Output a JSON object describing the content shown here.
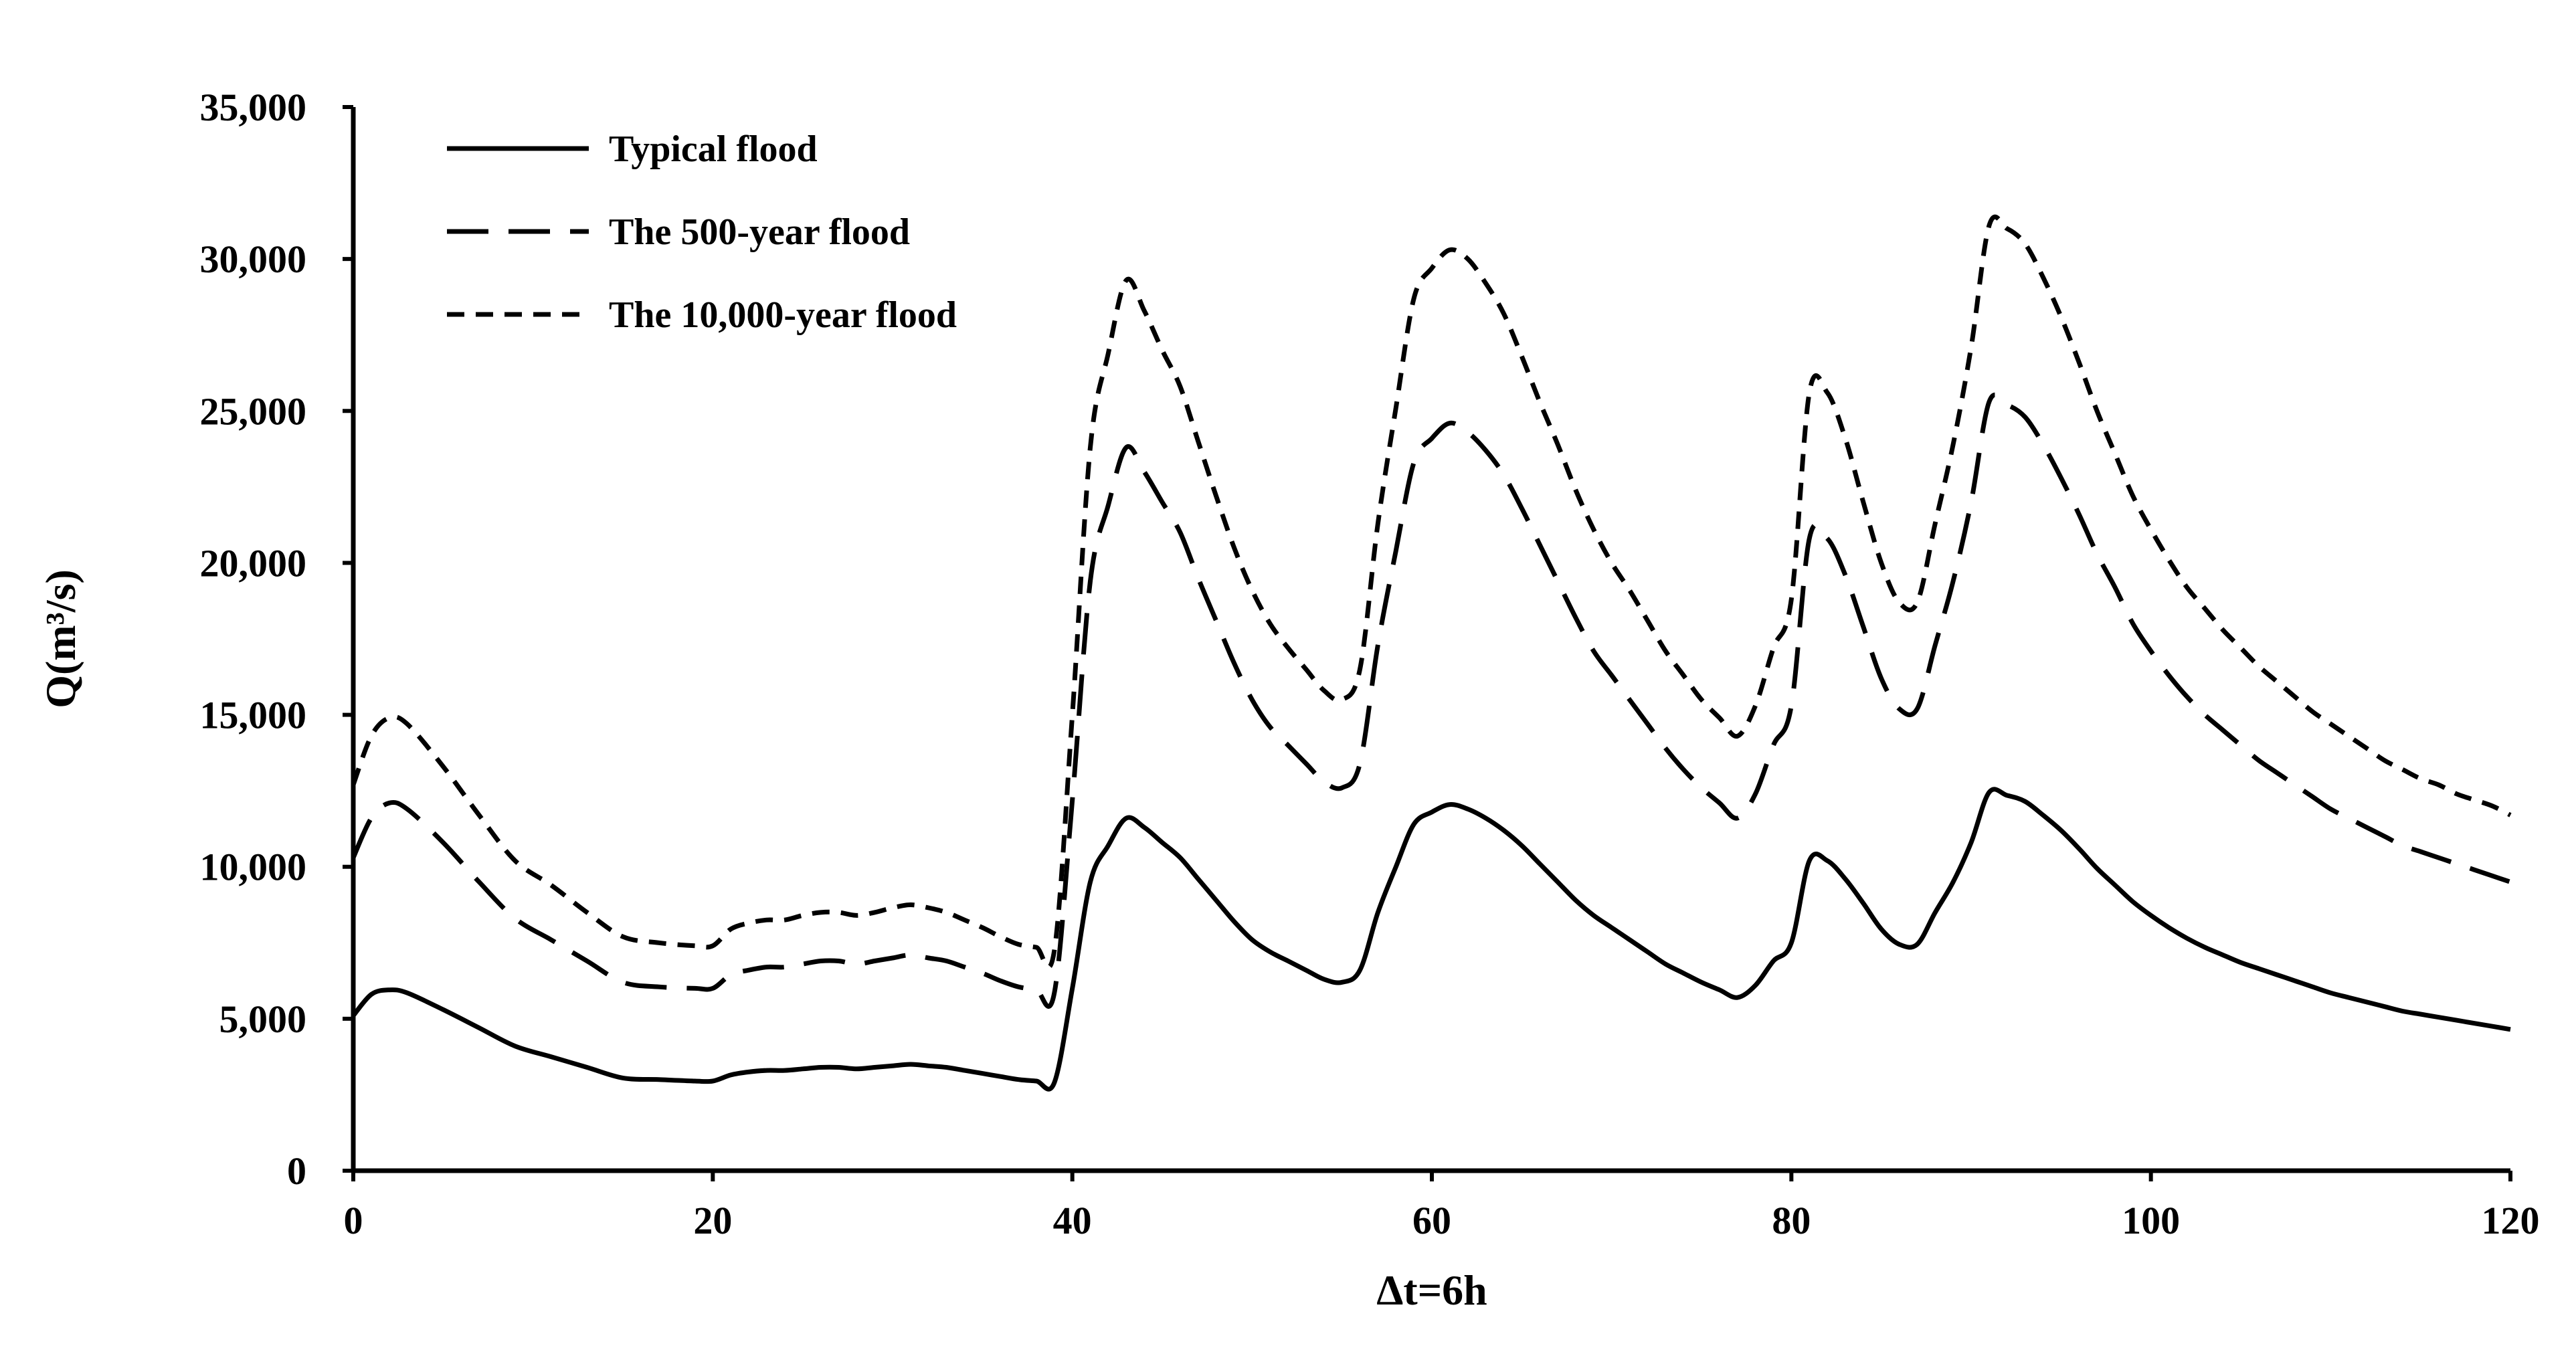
{
  "chart_data": {
    "type": "line",
    "title": "",
    "xlabel": "Δt=6h",
    "ylabel": "Q(m³/s)",
    "xlim": [
      0,
      120
    ],
    "ylim": [
      0,
      35000
    ],
    "x_ticks": [
      0,
      20,
      40,
      60,
      80,
      100,
      120
    ],
    "x_tick_labels": [
      "0",
      "20",
      "40",
      "60",
      "80",
      "100",
      "120"
    ],
    "y_ticks": [
      0,
      5000,
      10000,
      15000,
      20000,
      25000,
      30000,
      35000
    ],
    "y_tick_labels": [
      "0",
      "5,000",
      "10,000",
      "15,000",
      "20,000",
      "25,000",
      "30,000",
      "35,000"
    ],
    "grid": false,
    "legend_position": "top-left",
    "series": [
      {
        "name": "Typical flood",
        "style": "solid",
        "color": "#000000",
        "x": [
          0,
          1,
          2,
          3,
          5,
          7,
          9,
          11,
          13,
          15,
          17,
          19,
          20,
          21,
          22,
          23,
          24,
          25,
          26,
          27,
          28,
          29,
          30,
          31,
          32,
          33,
          34,
          35,
          36,
          37,
          38,
          39,
          40,
          41,
          42,
          43,
          44,
          45,
          46,
          47,
          48,
          49,
          50,
          51,
          52,
          53,
          54,
          55,
          56,
          57,
          58,
          59,
          60,
          61,
          62,
          63,
          64,
          65,
          66,
          67,
          68,
          69,
          70,
          71,
          72,
          73,
          74,
          75,
          76,
          77,
          78,
          79,
          80,
          81,
          82,
          83,
          84,
          85,
          86,
          87,
          88,
          89,
          90,
          91,
          92,
          93,
          94,
          95,
          96,
          97,
          98,
          99,
          100,
          101,
          102,
          103,
          104,
          105,
          106,
          107,
          108,
          109,
          110,
          111,
          112,
          113,
          114,
          115,
          116,
          117,
          118,
          119,
          120
        ],
        "values": [
          5100,
          5800,
          5950,
          5850,
          5300,
          4700,
          4100,
          3750,
          3400,
          3050,
          3000,
          2950,
          2950,
          3150,
          3250,
          3300,
          3300,
          3350,
          3400,
          3400,
          3350,
          3400,
          3450,
          3500,
          3450,
          3400,
          3300,
          3200,
          3100,
          3000,
          2950,
          2900,
          6000,
          9500,
          10700,
          11600,
          11300,
          10800,
          10300,
          9600,
          8900,
          8200,
          7600,
          7200,
          6900,
          6600,
          6300,
          6200,
          6600,
          8500,
          10000,
          11400,
          11800,
          12050,
          11900,
          11600,
          11200,
          10700,
          10100,
          9500,
          8900,
          8400,
          8000,
          7600,
          7200,
          6800,
          6500,
          6200,
          5950,
          5700,
          6100,
          6900,
          7500,
          10200,
          10200,
          9600,
          8800,
          7950,
          7450,
          7450,
          8500,
          9500,
          10800,
          12450,
          12350,
          12150,
          11700,
          11200,
          10600,
          9950,
          9400,
          8850,
          8400,
          8000,
          7650,
          7350,
          7100,
          6850,
          6650,
          6450,
          6250,
          6050,
          5850,
          5700,
          5550,
          5400,
          5250,
          5150,
          5050,
          4950,
          4850,
          4750,
          4650
        ]
      },
      {
        "name": "The 500-year flood",
        "style": "long-dash",
        "color": "#000000",
        "x": [
          0,
          1,
          2,
          3,
          5,
          7,
          9,
          11,
          13,
          15,
          17,
          19,
          20,
          21,
          22,
          23,
          24,
          25,
          26,
          27,
          28,
          29,
          30,
          31,
          32,
          33,
          34,
          35,
          36,
          37,
          38,
          39,
          40,
          41,
          42,
          43,
          44,
          45,
          46,
          47,
          48,
          49,
          50,
          51,
          52,
          53,
          54,
          55,
          56,
          57,
          58,
          59,
          60,
          61,
          62,
          63,
          64,
          65,
          66,
          67,
          68,
          69,
          70,
          71,
          72,
          73,
          74,
          75,
          76,
          77,
          78,
          79,
          80,
          81,
          82,
          83,
          84,
          85,
          86,
          87,
          88,
          89,
          90,
          91,
          92,
          93,
          94,
          95,
          96,
          97,
          98,
          99,
          100,
          101,
          102,
          103,
          104,
          105,
          106,
          107,
          108,
          109,
          110,
          111,
          112,
          113,
          114,
          115,
          116,
          117,
          118,
          119,
          120
        ],
        "values": [
          10300,
          11600,
          12100,
          11900,
          10800,
          9500,
          8300,
          7600,
          6900,
          6200,
          6050,
          6000,
          6000,
          6450,
          6600,
          6700,
          6700,
          6800,
          6900,
          6900,
          6800,
          6900,
          7000,
          7100,
          7000,
          6900,
          6700,
          6500,
          6250,
          6050,
          5950,
          5850,
          12200,
          19400,
          21900,
          23800,
          23000,
          22000,
          21000,
          19500,
          18100,
          16700,
          15500,
          14600,
          14000,
          13400,
          12800,
          12600,
          13400,
          17300,
          20400,
          23300,
          24100,
          24600,
          24300,
          23700,
          22900,
          21800,
          20600,
          19400,
          18200,
          17100,
          16300,
          15500,
          14700,
          13900,
          13200,
          12600,
          12100,
          11600,
          12400,
          14000,
          15300,
          20800,
          20800,
          19600,
          17900,
          16200,
          15200,
          15200,
          17300,
          19400,
          22000,
          25300,
          25200,
          24800,
          23900,
          22800,
          21600,
          20300,
          19200,
          18000,
          17100,
          16300,
          15600,
          15000,
          14500,
          14000,
          13500,
          13100,
          12700,
          12300,
          11900,
          11600,
          11300,
          11000,
          10700,
          10500,
          10300,
          10100,
          9900,
          9700,
          9500
        ]
      },
      {
        "name": "The 10,000-year flood",
        "style": "short-dash",
        "color": "#000000",
        "x": [
          0,
          1,
          2,
          3,
          5,
          7,
          9,
          11,
          13,
          15,
          17,
          19,
          20,
          21,
          22,
          23,
          24,
          25,
          26,
          27,
          28,
          29,
          30,
          31,
          32,
          33,
          34,
          35,
          36,
          37,
          38,
          39,
          40,
          41,
          42,
          43,
          44,
          45,
          46,
          47,
          48,
          49,
          50,
          51,
          52,
          53,
          54,
          55,
          56,
          57,
          58,
          59,
          60,
          61,
          62,
          63,
          64,
          65,
          66,
          67,
          68,
          69,
          70,
          71,
          72,
          73,
          74,
          75,
          76,
          77,
          78,
          79,
          80,
          81,
          82,
          83,
          84,
          85,
          86,
          87,
          88,
          89,
          90,
          91,
          92,
          93,
          94,
          95,
          96,
          97,
          98,
          99,
          100,
          101,
          102,
          103,
          104,
          105,
          106,
          107,
          108,
          109,
          110,
          111,
          112,
          113,
          114,
          115,
          116,
          117,
          118,
          119,
          120
        ],
        "values": [
          12700,
          14300,
          14900,
          14700,
          13300,
          11700,
          10200,
          9400,
          8500,
          7700,
          7500,
          7400,
          7400,
          7950,
          8150,
          8250,
          8250,
          8400,
          8500,
          8500,
          8400,
          8500,
          8650,
          8750,
          8650,
          8500,
          8250,
          8000,
          7700,
          7450,
          7350,
          7250,
          15000,
          23800,
          26900,
          29300,
          28300,
          27000,
          25800,
          24000,
          22200,
          20500,
          19100,
          18000,
          17200,
          16500,
          15800,
          15500,
          16500,
          21300,
          25100,
          28700,
          29700,
          30300,
          30000,
          29200,
          28200,
          26800,
          25300,
          23900,
          22400,
          21100,
          20000,
          19100,
          18100,
          17100,
          16300,
          15500,
          14900,
          14300,
          15300,
          17200,
          18800,
          25600,
          25600,
          24100,
          22000,
          20000,
          18700,
          18700,
          21300,
          23900,
          27100,
          31100,
          31000,
          30500,
          29400,
          28100,
          26600,
          25000,
          23600,
          22200,
          21100,
          20100,
          19200,
          18500,
          17800,
          17200,
          16600,
          16100,
          15600,
          15100,
          14700,
          14300,
          13900,
          13500,
          13200,
          12900,
          12700,
          12400,
          12200,
          12000,
          11700
        ]
      }
    ]
  }
}
